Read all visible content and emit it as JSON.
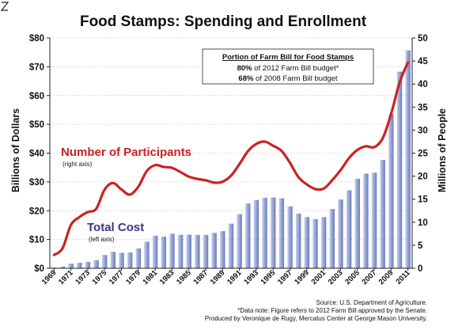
{
  "chart_data": {
    "type": "bar",
    "title": "Food Stamps: Spending and Enrollment",
    "ylabel_left": "Billions of Dollars",
    "ylabel_right": "Millions of People",
    "ylim_left": [
      0,
      80
    ],
    "ylim_right": [
      0,
      50
    ],
    "y_ticks_left": [
      "$0",
      "$10",
      "$20",
      "$30",
      "$40",
      "$50",
      "$60",
      "$70",
      "$80"
    ],
    "y_ticks_right": [
      "0",
      "5",
      "10",
      "15",
      "20",
      "25",
      "30",
      "35",
      "40",
      "45",
      "50"
    ],
    "x_tick_labels": [
      "1969",
      "1971",
      "1973",
      "1975",
      "1977",
      "1979",
      "1981",
      "1983",
      "1985",
      "1987",
      "1989",
      "1991",
      "1993",
      "1995",
      "1997",
      "1999",
      "2001",
      "2003",
      "2005",
      "2007",
      "2009",
      "2011"
    ],
    "categories": [
      1969,
      1970,
      1971,
      1972,
      1973,
      1974,
      1975,
      1976,
      1977,
      1978,
      1979,
      1980,
      1981,
      1982,
      1983,
      1984,
      1985,
      1986,
      1987,
      1988,
      1989,
      1990,
      1991,
      1992,
      1993,
      1994,
      1995,
      1996,
      1997,
      1998,
      1999,
      2000,
      2001,
      2002,
      2003,
      2004,
      2005,
      2006,
      2007,
      2008,
      2009,
      2010,
      2011
    ],
    "series": [
      {
        "name": "Total Cost",
        "sublabel": "(left axis)",
        "axis": "left",
        "kind": "bar",
        "color": "#7f8fc8",
        "values": [
          0.3,
          0.6,
          1.6,
          1.9,
          2.2,
          2.8,
          4.6,
          5.7,
          5.4,
          5.5,
          6.9,
          9.2,
          11.3,
          11.0,
          12.0,
          11.6,
          11.7,
          11.6,
          11.6,
          12.3,
          12.9,
          15.5,
          18.8,
          22.5,
          23.7,
          24.5,
          24.6,
          24.3,
          21.5,
          19.0,
          17.8,
          17.1,
          17.8,
          20.6,
          23.9,
          27.1,
          31.1,
          32.9,
          33.2,
          37.6,
          53.6,
          68.3,
          75.7
        ]
      },
      {
        "name": "Number of Participants",
        "sublabel": "(right axis)",
        "axis": "right",
        "kind": "line",
        "color": "#cc2222",
        "values": [
          2.9,
          4.3,
          9.4,
          11.1,
          12.2,
          12.9,
          17.1,
          18.5,
          17.1,
          16.0,
          17.7,
          21.1,
          22.4,
          22.0,
          21.8,
          20.9,
          19.9,
          19.4,
          19.1,
          18.6,
          18.8,
          20.1,
          22.6,
          25.4,
          27.0,
          27.5,
          26.6,
          25.5,
          22.9,
          19.8,
          18.2,
          17.2,
          17.3,
          19.1,
          21.3,
          23.9,
          25.7,
          26.5,
          26.3,
          28.2,
          33.5,
          40.3,
          44.7
        ]
      }
    ],
    "legend": "inline labels"
  },
  "annotation_box": {
    "title": "Portion of Farm Bill for Food Stamps",
    "line1_pct": "80%",
    "line1_text": " of 2012 Farm Bill budget*",
    "line2_pct": "68%",
    "line2_text": " of 2008 Farm Bill budget"
  },
  "footer": {
    "source": "Source: U.S. Department of Agriculture.",
    "note": "*Data note:  Figure refers to 2012 Farm Bill approved by the Senate.",
    "credit": "Produced by Veronique de Rugy, Mercatus Center at George Mason University."
  },
  "colors": {
    "line": "#cc2222",
    "bar": "#7f8fc8",
    "bar_highlight": "#c8d0ee",
    "grid": "#bbbbbb",
    "title": "#111111",
    "cost_label": "#3a3580"
  }
}
